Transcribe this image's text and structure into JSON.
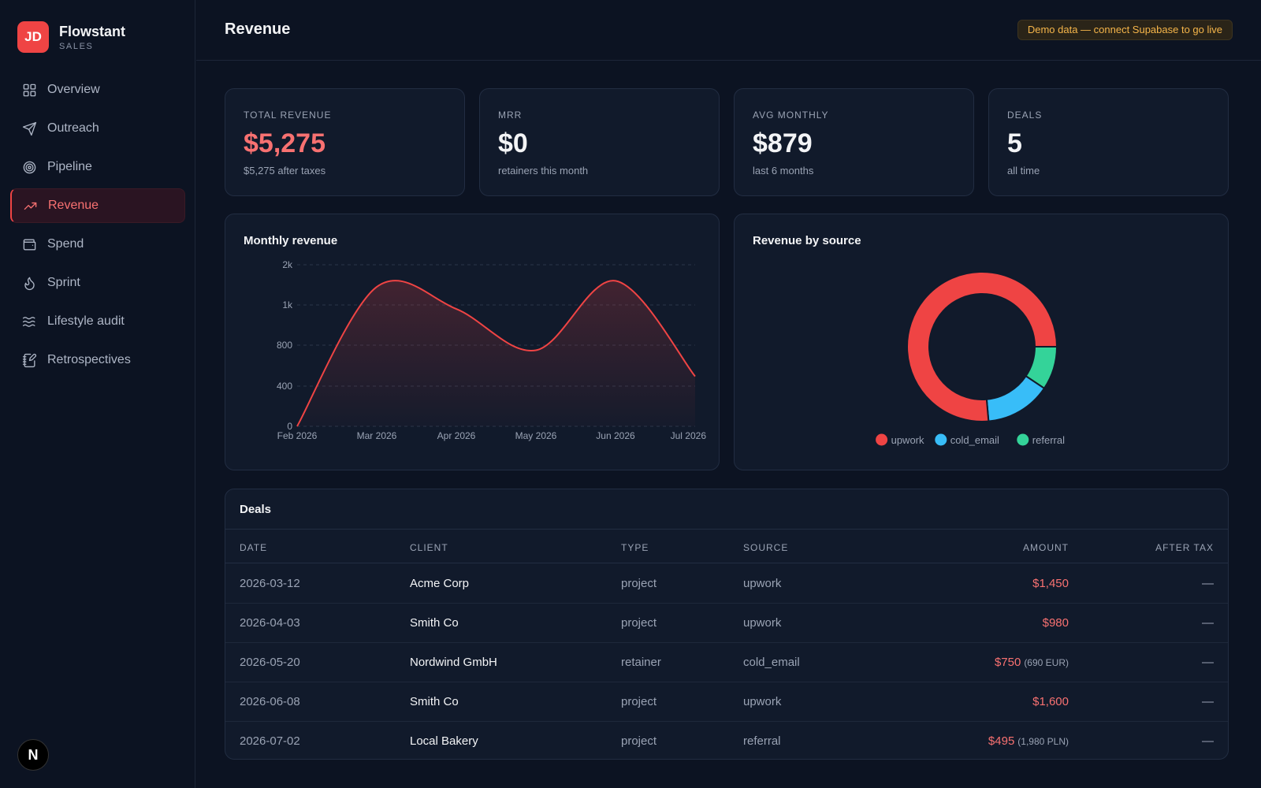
{
  "brand": {
    "initials": "JD",
    "name": "Flowstant",
    "sub": "SALES"
  },
  "nav": [
    {
      "label": "Overview",
      "icon": "grid-icon",
      "active": false
    },
    {
      "label": "Outreach",
      "icon": "send-icon",
      "active": false
    },
    {
      "label": "Pipeline",
      "icon": "target-icon",
      "active": false
    },
    {
      "label": "Revenue",
      "icon": "trending-up-icon",
      "active": true
    },
    {
      "label": "Spend",
      "icon": "wallet-icon",
      "active": false
    },
    {
      "label": "Sprint",
      "icon": "flame-icon",
      "active": false
    },
    {
      "label": "Lifestyle audit",
      "icon": "waves-icon",
      "active": false
    },
    {
      "label": "Retrospectives",
      "icon": "notebook-pen-icon",
      "active": false
    }
  ],
  "footer_badge": "N",
  "header": {
    "title": "Revenue",
    "notice": "Demo data — connect Supabase to go live"
  },
  "stats": [
    {
      "label": "TOTAL REVENUE",
      "value": "$5,275",
      "sub": "$5,275 after taxes",
      "highlight": true
    },
    {
      "label": "MRR",
      "value": "$0",
      "sub": "retainers this month",
      "highlight": false
    },
    {
      "label": "AVG MONTHLY",
      "value": "$879",
      "sub": "last 6 months",
      "highlight": false
    },
    {
      "label": "DEALS",
      "value": "5",
      "sub": "all time",
      "highlight": false
    }
  ],
  "monthly_chart": {
    "title": "Monthly revenue"
  },
  "source_chart": {
    "title": "Revenue by source"
  },
  "chart_data": [
    {
      "type": "area",
      "title": "Monthly revenue",
      "x": [
        "Feb 2026",
        "Mar 2026",
        "Apr 2026",
        "May 2026",
        "Jun 2026",
        "Jul 2026"
      ],
      "y_ticks": [
        "0",
        "400",
        "800",
        "1k",
        "2k"
      ],
      "series": [
        {
          "values": [
            0,
            1450,
            980,
            750,
            1600,
            495
          ]
        }
      ],
      "color": "#ef4444",
      "grid": true
    },
    {
      "type": "pie",
      "title": "Revenue by source",
      "categories": [
        "upwork",
        "cold_email",
        "referral"
      ],
      "values": [
        4030,
        750,
        495
      ],
      "colors": [
        "#ef4444",
        "#38bdf8",
        "#34d399"
      ],
      "legend": "bottom"
    }
  ],
  "deals": {
    "title": "Deals",
    "columns": [
      "DATE",
      "CLIENT",
      "TYPE",
      "SOURCE",
      "AMOUNT",
      "AFTER TAX"
    ],
    "rows": [
      {
        "date": "2026-03-12",
        "client": "Acme Corp",
        "type": "project",
        "source": "upwork",
        "amount": "$1,450",
        "fx": "",
        "after_tax": "—"
      },
      {
        "date": "2026-04-03",
        "client": "Smith Co",
        "type": "project",
        "source": "upwork",
        "amount": "$980",
        "fx": "",
        "after_tax": "—"
      },
      {
        "date": "2026-05-20",
        "client": "Nordwind GmbH",
        "type": "retainer",
        "source": "cold_email",
        "amount": "$750",
        "fx": "(690 EUR)",
        "after_tax": "—"
      },
      {
        "date": "2026-06-08",
        "client": "Smith Co",
        "type": "project",
        "source": "upwork",
        "amount": "$1,600",
        "fx": "",
        "after_tax": "—"
      },
      {
        "date": "2026-07-02",
        "client": "Local Bakery",
        "type": "project",
        "source": "referral",
        "amount": "$495",
        "fx": "(1,980 PLN)",
        "after_tax": "—"
      }
    ]
  }
}
